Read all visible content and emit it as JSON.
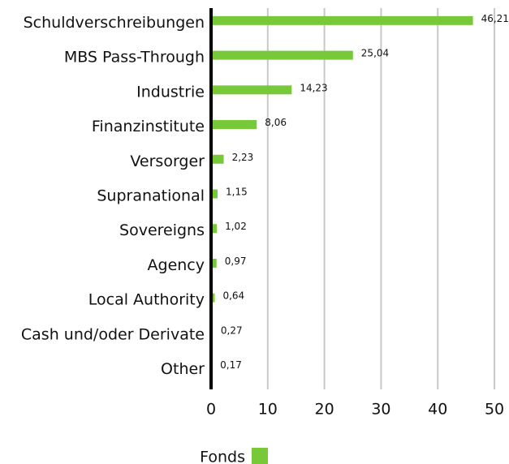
{
  "chart_data": {
    "type": "bar",
    "orientation": "horizontal",
    "categories": [
      "Schuldverschreibungen",
      "MBS Pass-Through",
      "Industrie",
      "Finanzinstitute",
      "Versorger",
      "Supranational",
      "Sovereigns",
      "Agency",
      "Local Authority",
      "Cash und/oder Derivate",
      "Other"
    ],
    "series": [
      {
        "name": "Fonds",
        "color": "#77c93a",
        "values": [
          46.21,
          25.04,
          14.23,
          8.06,
          2.23,
          1.15,
          1.02,
          0.97,
          0.64,
          0.27,
          0.17
        ],
        "value_labels": [
          "46,21",
          "25,04",
          "14,23",
          "8,06",
          "2,23",
          "1,15",
          "1,02",
          "0,97",
          "0,64",
          "0,27",
          "0,17"
        ]
      }
    ],
    "xlim": [
      0,
      52
    ],
    "xticks": [
      0,
      10,
      20,
      30,
      40,
      50
    ],
    "grid": true,
    "legend": "bottom"
  }
}
